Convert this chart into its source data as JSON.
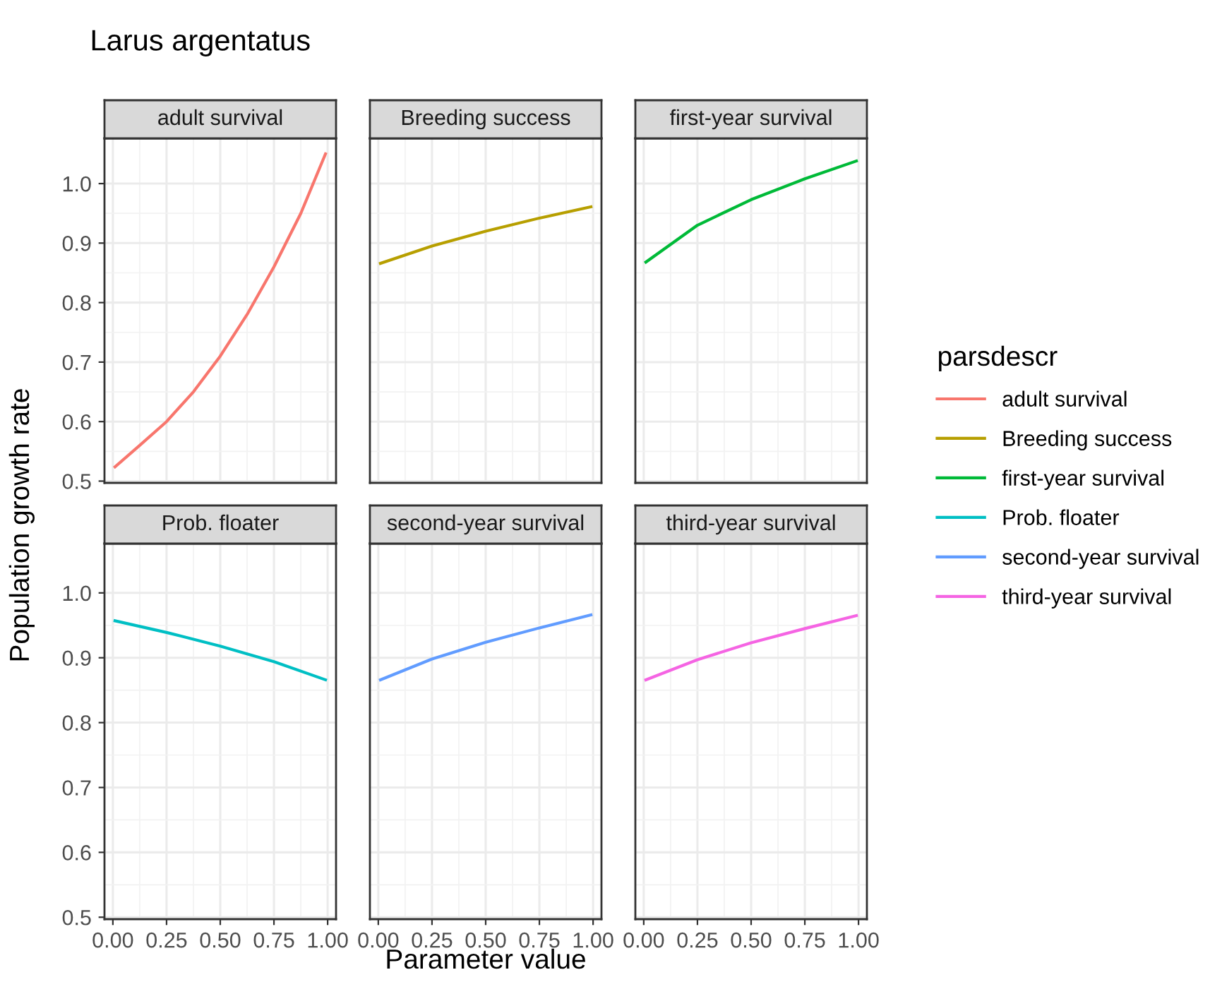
{
  "chart_data": [
    {
      "type": "line",
      "title": "Larus argentatus",
      "subtitle": "adult survival",
      "ylabel": "Population growth rate",
      "legend_title": "parsdescr",
      "legend": "right",
      "xlim": [
        -0.039,
        1.039
      ],
      "ylim": [
        0.497,
        1.076
      ],
      "xticks": [
        {
          "value": 0,
          "label": null
        },
        {
          "value": 0.25,
          "label": null
        },
        {
          "value": 0.5,
          "label": null
        },
        {
          "value": 0.75,
          "label": null
        },
        {
          "value": 1,
          "label": null
        }
      ],
      "yticks": [
        0.5,
        0.6,
        0.7,
        0.8,
        0.9,
        {
          "value": 1,
          "label": "1.0"
        }
      ],
      "grid": true,
      "tick_labels": "y",
      "x": [
        0.01,
        0.125,
        0.25,
        0.375,
        0.5,
        0.625,
        0.75,
        0.875,
        0.99
      ],
      "series": [
        {
          "name": "adult survival",
          "color": "#f8766d",
          "values": [
            0.524,
            0.56,
            0.6,
            0.65,
            0.71,
            0.78,
            0.86,
            0.95,
            1.05
          ]
        }
      ]
    },
    {
      "type": "line",
      "subtitle": "Breeding success",
      "legend": "right",
      "xlim": [
        -0.039,
        1.039
      ],
      "ylim": [
        0.497,
        1.076
      ],
      "xticks": [
        {
          "value": 0,
          "label": null
        },
        {
          "value": 0.25,
          "label": null
        },
        {
          "value": 0.5,
          "label": null
        },
        {
          "value": 0.75,
          "label": null
        },
        {
          "value": 1,
          "label": null
        }
      ],
      "yticks": [
        {
          "value": 0.5,
          "label": null
        },
        {
          "value": 0.6,
          "label": null
        },
        {
          "value": 0.7,
          "label": null
        },
        {
          "value": 0.8,
          "label": null
        },
        {
          "value": 0.9,
          "label": null
        },
        {
          "value": 1,
          "label": null
        }
      ],
      "grid": true,
      "tick_labels": false,
      "x": [
        0.01,
        0.25,
        0.5,
        0.75,
        0.99
      ],
      "series": [
        {
          "name": "Breeding success",
          "color": "#b79f00",
          "values": [
            0.866,
            0.895,
            0.92,
            0.942,
            0.961
          ]
        }
      ]
    },
    {
      "type": "line",
      "subtitle": "first-year survival",
      "legend": "right",
      "xlim": [
        -0.039,
        1.039
      ],
      "ylim": [
        0.497,
        1.076
      ],
      "xticks": [
        {
          "value": 0,
          "label": null
        },
        {
          "value": 0.25,
          "label": null
        },
        {
          "value": 0.5,
          "label": null
        },
        {
          "value": 0.75,
          "label": null
        },
        {
          "value": 1,
          "label": null
        }
      ],
      "yticks": [
        {
          "value": 0.5,
          "label": null
        },
        {
          "value": 0.6,
          "label": null
        },
        {
          "value": 0.7,
          "label": null
        },
        {
          "value": 0.8,
          "label": null
        },
        {
          "value": 0.9,
          "label": null
        },
        {
          "value": 1,
          "label": null
        }
      ],
      "grid": true,
      "tick_labels": false,
      "x": [
        0.01,
        0.25,
        0.5,
        0.75,
        0.99
      ],
      "series": [
        {
          "name": "first-year survival",
          "color": "#00ba38",
          "values": [
            0.868,
            0.93,
            0.973,
            1.008,
            1.038
          ]
        }
      ]
    },
    {
      "type": "line",
      "subtitle": "Prob. floater",
      "legend": "right",
      "xlim": [
        -0.039,
        1.039
      ],
      "ylim": [
        0.497,
        1.076
      ],
      "xticks": [
        {
          "value": 0,
          "label": "0.00"
        },
        {
          "value": 0.25,
          "label": "0.25"
        },
        {
          "value": 0.5,
          "label": "0.50"
        },
        {
          "value": 0.75,
          "label": "0.75"
        },
        {
          "value": 1,
          "label": "1.00"
        }
      ],
      "yticks": [
        0.5,
        0.6,
        0.7,
        0.8,
        0.9,
        {
          "value": 1,
          "label": "1.0"
        }
      ],
      "grid": true,
      "x": [
        0.01,
        0.25,
        0.5,
        0.75,
        0.99
      ],
      "series": [
        {
          "name": "Prob. floater",
          "color": "#00bfc4",
          "values": [
            0.957,
            0.939,
            0.918,
            0.894,
            0.866
          ]
        }
      ]
    },
    {
      "type": "line",
      "subtitle": "second-year survival",
      "xlabel": "Parameter value",
      "legend": "right",
      "xlim": [
        -0.039,
        1.039
      ],
      "ylim": [
        0.497,
        1.076
      ],
      "xticks": [
        {
          "value": 0,
          "label": "0.00"
        },
        {
          "value": 0.25,
          "label": "0.25"
        },
        {
          "value": 0.5,
          "label": "0.50"
        },
        {
          "value": 0.75,
          "label": "0.75"
        },
        {
          "value": 1,
          "label": "1.00"
        }
      ],
      "yticks": [
        {
          "value": 0.5,
          "label": null
        },
        {
          "value": 0.6,
          "label": null
        },
        {
          "value": 0.7,
          "label": null
        },
        {
          "value": 0.8,
          "label": null
        },
        {
          "value": 0.9,
          "label": null
        },
        {
          "value": 1,
          "label": null
        }
      ],
      "grid": true,
      "tick_labels": "x",
      "x": [
        0.01,
        0.25,
        0.5,
        0.75,
        0.99
      ],
      "series": [
        {
          "name": "second-year survival",
          "color": "#619cff",
          "values": [
            0.866,
            0.898,
            0.924,
            0.946,
            0.966
          ]
        }
      ]
    },
    {
      "type": "line",
      "subtitle": "third-year survival",
      "legend": "right",
      "xlim": [
        -0.039,
        1.039
      ],
      "ylim": [
        0.497,
        1.076
      ],
      "xticks": [
        {
          "value": 0,
          "label": "0.00"
        },
        {
          "value": 0.25,
          "label": "0.25"
        },
        {
          "value": 0.5,
          "label": "0.50"
        },
        {
          "value": 0.75,
          "label": "0.75"
        },
        {
          "value": 1,
          "label": "1.00"
        }
      ],
      "yticks": [
        {
          "value": 0.5,
          "label": null
        },
        {
          "value": 0.6,
          "label": null
        },
        {
          "value": 0.7,
          "label": null
        },
        {
          "value": 0.8,
          "label": null
        },
        {
          "value": 0.9,
          "label": null
        },
        {
          "value": 1,
          "label": null
        }
      ],
      "grid": true,
      "tick_labels": "x",
      "x": [
        0.01,
        0.25,
        0.5,
        0.75,
        0.99
      ],
      "series": [
        {
          "name": "third-year survival",
          "color": "#f564e3",
          "values": [
            0.866,
            0.897,
            0.923,
            0.945,
            0.965
          ]
        }
      ]
    }
  ]
}
